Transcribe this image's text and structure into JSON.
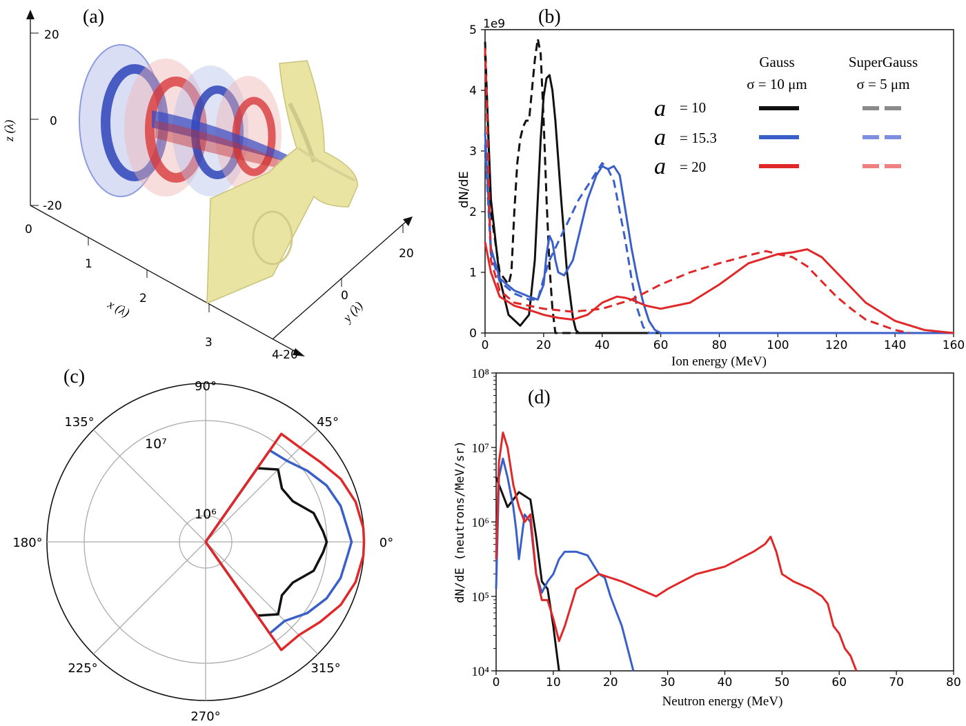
{
  "panel_labels": {
    "a": "(a)",
    "b": "(b)",
    "c": "(c)",
    "d": "(d)"
  },
  "colors": {
    "black": "#111111",
    "blue": "#3a5fc8",
    "red": "#e02828",
    "gray": "#8a8a8a",
    "light_blue": "#7f8fe0",
    "light_red": "#ef8080",
    "foil": "#e9e4a2"
  },
  "panel_a": {
    "z_label": "z (λ)",
    "x_label": "x (λ)",
    "y_label": "y (λ)",
    "z_ticks": [
      "20",
      "0",
      "-20"
    ],
    "x_ticks": [
      "0",
      "1",
      "2",
      "3",
      "4"
    ],
    "y_ticks": [
      "20",
      "0",
      "-20"
    ],
    "image_description": "3D isosurfaces of red and blue laser field rings incident on a yellow foil target"
  },
  "chart_data": [
    {
      "id": "b",
      "type": "line",
      "xlabel": "Ion energy (MeV)",
      "ylabel": "dN/dE",
      "y_multiplier": "1e9",
      "xlim": [
        0,
        160
      ],
      "ylim": [
        0,
        5
      ],
      "xticks": [
        0,
        20,
        40,
        60,
        80,
        100,
        120,
        140,
        160
      ],
      "yticks": [
        0,
        1,
        2,
        3,
        4,
        5
      ],
      "legend": {
        "col_headers": [
          [
            "Gauss",
            "σ = 10 μm"
          ],
          [
            "SuperGauss",
            "σ = 5 μm"
          ]
        ],
        "rows": [
          {
            "sym": "a",
            "label": "= 10",
            "color": "black"
          },
          {
            "sym": "a",
            "label": "= 15.3",
            "color": "blue"
          },
          {
            "sym": "a",
            "label": "= 20",
            "color": "red"
          }
        ]
      },
      "series": [
        {
          "color": "black",
          "style": "solid",
          "x": [
            0,
            2,
            5,
            8,
            12,
            15,
            17,
            19,
            20,
            21,
            22,
            23,
            24,
            26,
            28,
            30,
            31,
            32,
            160
          ],
          "y": [
            4.6,
            2.2,
            0.9,
            0.3,
            0.12,
            0.3,
            1.2,
            3.2,
            3.9,
            4.2,
            4.25,
            4.0,
            3.5,
            2.2,
            1.0,
            0.25,
            0.05,
            0,
            0
          ]
        },
        {
          "color": "black",
          "style": "dashed",
          "x": [
            0,
            2,
            5,
            8,
            9,
            10,
            11,
            12,
            13,
            14,
            15,
            16,
            17,
            18,
            19,
            20,
            21,
            22,
            23,
            24,
            160
          ],
          "y": [
            4.8,
            2.0,
            1.0,
            0.8,
            1.0,
            2.0,
            2.8,
            3.2,
            3.4,
            3.5,
            3.5,
            4.0,
            4.5,
            4.85,
            4.6,
            3.5,
            2.2,
            1.1,
            0.4,
            0,
            0
          ]
        },
        {
          "color": "blue",
          "style": "solid",
          "x": [
            0,
            2,
            5,
            10,
            15,
            18,
            20,
            21,
            22,
            23,
            24,
            25,
            27,
            30,
            33,
            35,
            38,
            40,
            42,
            44,
            46,
            48,
            50,
            52,
            54,
            56,
            58,
            60,
            160
          ],
          "y": [
            3.3,
            1.4,
            0.9,
            0.7,
            0.6,
            0.55,
            0.8,
            1.3,
            1.6,
            1.5,
            1.2,
            1.0,
            0.95,
            1.2,
            1.8,
            2.2,
            2.6,
            2.75,
            2.7,
            2.75,
            2.6,
            2.0,
            1.4,
            0.9,
            0.5,
            0.2,
            0.05,
            0,
            0
          ]
        },
        {
          "color": "blue",
          "style": "dashed",
          "x": [
            0,
            2,
            5,
            10,
            15,
            18,
            20,
            22,
            25,
            28,
            32,
            36,
            40,
            42,
            44,
            46,
            48,
            50,
            52,
            54,
            56,
            160
          ],
          "y": [
            3.1,
            1.3,
            0.85,
            0.65,
            0.55,
            0.55,
            0.9,
            1.2,
            1.5,
            1.8,
            2.2,
            2.5,
            2.8,
            2.7,
            2.5,
            2.0,
            1.5,
            0.9,
            0.4,
            0.1,
            0,
            0
          ]
        },
        {
          "color": "red",
          "style": "solid",
          "x": [
            0,
            2,
            5,
            10,
            15,
            20,
            25,
            30,
            35,
            40,
            45,
            48,
            50,
            55,
            60,
            70,
            80,
            90,
            100,
            105,
            110,
            115,
            120,
            130,
            140,
            150,
            160
          ],
          "y": [
            1.5,
            1.0,
            0.6,
            0.45,
            0.38,
            0.3,
            0.25,
            0.22,
            0.3,
            0.5,
            0.6,
            0.58,
            0.55,
            0.45,
            0.4,
            0.5,
            0.8,
            1.15,
            1.3,
            1.33,
            1.38,
            1.25,
            1.0,
            0.5,
            0.2,
            0.05,
            0
          ]
        },
        {
          "color": "red",
          "style": "dashed",
          "x": [
            0,
            2,
            5,
            10,
            20,
            30,
            40,
            50,
            60,
            70,
            80,
            90,
            96,
            100,
            105,
            110,
            115,
            120,
            125,
            130,
            140,
            145
          ],
          "y": [
            4.7,
            1.2,
            0.7,
            0.5,
            0.4,
            0.35,
            0.4,
            0.55,
            0.8,
            1.0,
            1.15,
            1.28,
            1.35,
            1.3,
            1.25,
            1.1,
            0.85,
            0.6,
            0.4,
            0.22,
            0.05,
            0
          ]
        }
      ]
    },
    {
      "id": "c",
      "type": "polar",
      "angle_labels": [
        "0°",
        "45°",
        "90°",
        "135°",
        "180°",
        "225°",
        "270°",
        "315°"
      ],
      "r_labels": [
        "10⁶",
        "10⁷"
      ],
      "series": [
        {
          "color": "black",
          "theta_deg": [
            -63,
            -55,
            -45,
            -35,
            -25,
            -15,
            -5,
            0,
            5,
            15,
            25,
            35,
            45,
            55,
            63
          ],
          "r": [
            0,
            0.58,
            0.66,
            0.6,
            0.62,
            0.72,
            0.76,
            0.78,
            0.76,
            0.72,
            0.62,
            0.6,
            0.66,
            0.58,
            0
          ]
        },
        {
          "color": "blue",
          "theta_deg": [
            -60,
            -55,
            -45,
            -35,
            -25,
            -15,
            -5,
            0,
            5,
            15,
            25,
            35,
            45,
            55,
            60
          ],
          "r": [
            0,
            0.72,
            0.72,
            0.8,
            0.86,
            0.9,
            0.92,
            0.94,
            0.92,
            0.9,
            0.86,
            0.8,
            0.74,
            0.72,
            0
          ]
        },
        {
          "color": "red",
          "theta_deg": [
            -60,
            -55,
            -45,
            -35,
            -25,
            -15,
            -5,
            0,
            5,
            15,
            25,
            35,
            45,
            55,
            60
          ],
          "r": [
            0,
            0.85,
            0.85,
            0.9,
            0.96,
            1.0,
            1.02,
            1.02,
            1.02,
            1.0,
            0.96,
            0.9,
            0.86,
            0.85,
            0
          ]
        }
      ]
    },
    {
      "id": "d",
      "type": "line",
      "xlabel": "Neutron energy (MeV)",
      "ylabel": "dN/dE (neutrons/MeV/sr)",
      "xlim": [
        0,
        80
      ],
      "ylim_log10": [
        4,
        8
      ],
      "yscale": "log",
      "xticks": [
        0,
        10,
        20,
        30,
        40,
        50,
        60,
        70,
        80
      ],
      "yticks": [
        "10⁴",
        "10⁵",
        "10⁶",
        "10⁷",
        "10⁸"
      ],
      "series": [
        {
          "color": "black",
          "x": [
            0,
            0.5,
            1,
            2,
            3,
            4,
            5,
            6,
            7,
            8,
            9,
            10,
            10.5,
            11
          ],
          "logy": [
            6.6,
            6.5,
            6.4,
            6.2,
            6.3,
            6.4,
            6.35,
            6.3,
            5.8,
            5.2,
            5.1,
            4.6,
            4.3,
            4.0
          ]
        },
        {
          "color": "blue",
          "x": [
            0,
            0.5,
            1.2,
            2,
            3,
            3.5,
            4,
            5,
            6,
            7,
            8,
            9,
            10,
            11,
            12,
            14,
            16,
            18,
            19,
            20,
            21,
            22,
            23,
            24
          ],
          "logy": [
            5.1,
            6.6,
            6.85,
            6.6,
            6.2,
            5.9,
            5.5,
            6.1,
            6.0,
            5.3,
            5.05,
            5.2,
            5.3,
            5.5,
            5.6,
            5.6,
            5.55,
            5.3,
            5.25,
            5.0,
            4.8,
            4.6,
            4.3,
            4.0
          ]
        },
        {
          "color": "red",
          "x": [
            0,
            0.5,
            1.2,
            2,
            3,
            4,
            5,
            6,
            7,
            8,
            9,
            10,
            11,
            12,
            14,
            16,
            18,
            20,
            22,
            25,
            28,
            30,
            35,
            40,
            45,
            47,
            48,
            49,
            50,
            52,
            55,
            57,
            58,
            59,
            60,
            61,
            62,
            63
          ],
          "logy": [
            5.5,
            6.8,
            7.2,
            7.0,
            6.5,
            6.2,
            6.0,
            6.1,
            5.3,
            4.95,
            4.95,
            4.7,
            4.4,
            4.6,
            5.1,
            5.2,
            5.3,
            5.25,
            5.2,
            5.1,
            5.0,
            5.1,
            5.3,
            5.4,
            5.6,
            5.7,
            5.8,
            5.6,
            5.3,
            5.2,
            5.1,
            5.0,
            4.9,
            4.6,
            4.5,
            4.3,
            4.2,
            4.0
          ]
        }
      ]
    }
  ]
}
